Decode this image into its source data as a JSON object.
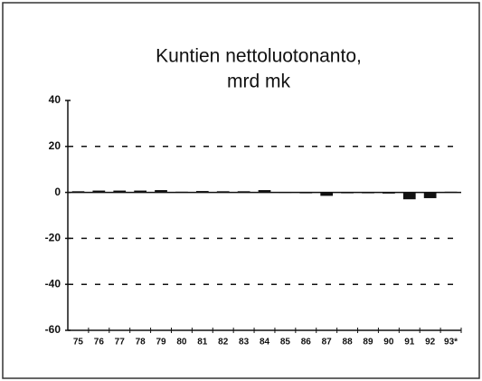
{
  "chart_data": {
    "type": "bar",
    "title": [
      "Kuntien nettoluotonanto,",
      "mrd mk"
    ],
    "categories": [
      "75",
      "76",
      "77",
      "78",
      "79",
      "80",
      "81",
      "82",
      "83",
      "84",
      "85",
      "86",
      "87",
      "88",
      "89",
      "90",
      "91",
      "92",
      "93*"
    ],
    "values": [
      0.5,
      0.8,
      0.8,
      0.8,
      1,
      0.3,
      0.6,
      0.5,
      0.5,
      1,
      0.2,
      -0.3,
      -1.5,
      -0.3,
      -0.2,
      -0.5,
      -3,
      -2.5,
      0.3
    ],
    "color": "#111111",
    "ylim": [
      -60,
      40
    ],
    "yticks": [
      -60,
      -40,
      -20,
      0,
      20,
      40
    ],
    "grid": true
  }
}
